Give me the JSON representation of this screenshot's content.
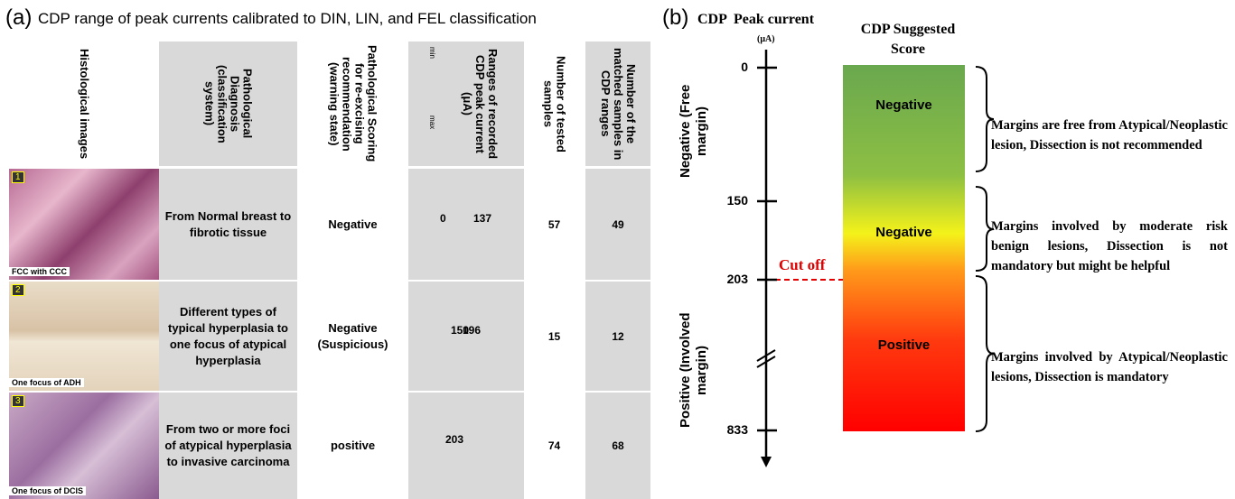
{
  "panel_a": {
    "label": "(a)",
    "title": "CDP range of peak currents calibrated to DIN, LIN, and FEL classification",
    "headers": [
      "Histological images",
      "Pathological Diagnosis (classification system)",
      "Pathological Scoring for re-excising recommendation (warning state)",
      "Ranges of recorded CDP peak current (μA)",
      "Number of tested samples",
      "Number of the matched samples in CDP ranges"
    ],
    "range_icon": {
      "min": "min",
      "max": "max"
    },
    "rows": [
      {
        "image_number": "1",
        "image_caption": "FCC with CCC",
        "diagnosis": "From Normal breast to fibrotic tissue",
        "scoring": "Negative",
        "range_min": "0",
        "range_max": "137",
        "tested": "57",
        "matched": "49"
      },
      {
        "image_number": "2",
        "image_caption": "One focus of ADH",
        "diagnosis": "Different types of typical hyperplasia to one focus of atypical hyperplasia",
        "scoring": "Negative (Suspicious)",
        "range_min": "150",
        "range_max": "196",
        "tested": "15",
        "matched": "12"
      },
      {
        "image_number": "3",
        "image_caption": "One focus of DCIS",
        "diagnosis": "From two or more foci of atypical hyperplasia to invasive carcinoma",
        "scoring": "positive",
        "range_min": "203",
        "tested": "74",
        "matched": "68"
      }
    ]
  },
  "panel_b": {
    "label": "(b)",
    "axis_title": "CDP  Peak current",
    "unit": "(μA)",
    "score_title": "CDP Suggested Score",
    "axis_labels": [
      "Negative (Free margin)",
      "Positive (Involved margin)"
    ],
    "ticks": [
      "0",
      "150",
      "203",
      "833"
    ],
    "cutoff": "Cut off",
    "zones": [
      {
        "label": "Negative",
        "note": "Margins are free from Atypical/Neoplastic lesion, Dissection is not recommended"
      },
      {
        "label": "Negative",
        "note": "Margins involved by moderate risk benign lesions, Dissection is not mandatory but might be helpful"
      },
      {
        "label": "Positive",
        "note": "Margins involved by Atypical/Neoplastic lesions, Dissection is mandatory"
      }
    ]
  }
}
